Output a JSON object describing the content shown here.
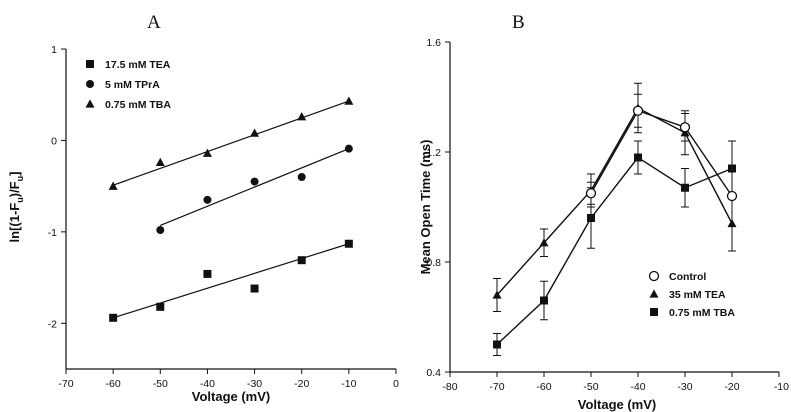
{
  "chart_data": [
    {
      "panel_label": "A",
      "type": "scatter",
      "xlabel": "Voltage (mV)",
      "ylabel": "ln[(1-F",
      "ylabel_sub1": "u",
      "ylabel_mid": ")/F",
      "ylabel_sub2": "u",
      "ylabel_end": "]",
      "xlim": [
        -70,
        0
      ],
      "ylim": [
        -2.5,
        1
      ],
      "xticks": [
        -70,
        -60,
        -50,
        -40,
        -30,
        -20,
        -10,
        0
      ],
      "yticks": [
        -2,
        -1,
        0,
        1
      ],
      "xtick_labels": [
        "-70",
        "-60",
        "-50",
        "-40",
        "-30",
        "-20",
        "-10",
        "0"
      ],
      "ytick_labels": [
        "-2",
        "-1",
        "0",
        "1"
      ],
      "legend": "top-left",
      "series": [
        {
          "name": "17.5 mM TEA",
          "marker": "square",
          "x": [
            -60,
            -50,
            -40,
            -30,
            -20,
            -10
          ],
          "y": [
            -1.94,
            -1.82,
            -1.46,
            -1.62,
            -1.31,
            -1.13
          ],
          "fit": [
            [
              -60,
              -1.94
            ],
            [
              -10,
              -1.13
            ]
          ]
        },
        {
          "name": "5  mM TPrA",
          "marker": "circle",
          "x": [
            -50,
            -40,
            -30,
            -20,
            -10
          ],
          "y": [
            -0.98,
            -0.65,
            -0.45,
            -0.4,
            -0.09
          ],
          "fit": [
            [
              -50,
              -0.93
            ],
            [
              -10,
              -0.09
            ]
          ]
        },
        {
          "name": "0.75 mM TBA",
          "marker": "triangle",
          "x": [
            -60,
            -50,
            -40,
            -30,
            -20,
            -10
          ],
          "y": [
            -0.5,
            -0.24,
            -0.14,
            0.08,
            0.26,
            0.43
          ],
          "fit": [
            [
              -60,
              -0.49
            ],
            [
              -10,
              0.43
            ]
          ]
        }
      ]
    },
    {
      "panel_label": "B",
      "type": "line",
      "xlabel": "Voltage (mV)",
      "ylabel": "Mean Open Time (ms)",
      "xlim": [
        -80,
        -10
      ],
      "ylim": [
        0.4,
        1.6
      ],
      "xticks": [
        -80,
        -70,
        -60,
        -50,
        -40,
        -30,
        -20,
        -10
      ],
      "yticks": [
        0.4,
        0.8,
        1.2,
        1.6
      ],
      "xtick_labels": [
        "-80",
        "-70",
        "-60",
        "-50",
        "-40",
        "-30",
        "-20",
        "-10"
      ],
      "ytick_labels": [
        "0.4",
        "0.8",
        "1.2",
        "1.6"
      ],
      "legend": "bottom-right",
      "series": [
        {
          "name": "Control",
          "marker": "open-circle",
          "x": [
            -50,
            -40,
            -30,
            -20
          ],
          "y": [
            1.05,
            1.35,
            1.29,
            1.04
          ],
          "err": [
            0.04,
            0.06,
            0.05,
            0.0
          ]
        },
        {
          "name": "35 mM TEA",
          "marker": "triangle",
          "x": [
            -70,
            -60,
            -50,
            -40,
            -30,
            -20
          ],
          "y": [
            0.68,
            0.87,
            1.06,
            1.36,
            1.27,
            0.94
          ],
          "err": [
            0.06,
            0.05,
            0.06,
            0.09,
            0.08,
            0.1
          ]
        },
        {
          "name": "0.75 mM TBA",
          "marker": "square",
          "x": [
            -70,
            -60,
            -50,
            -40,
            -30,
            -20
          ],
          "y": [
            0.5,
            0.66,
            0.96,
            1.18,
            1.07,
            1.14
          ],
          "err": [
            0.04,
            0.07,
            0.11,
            0.06,
            0.07,
            0.1
          ]
        }
      ]
    }
  ]
}
